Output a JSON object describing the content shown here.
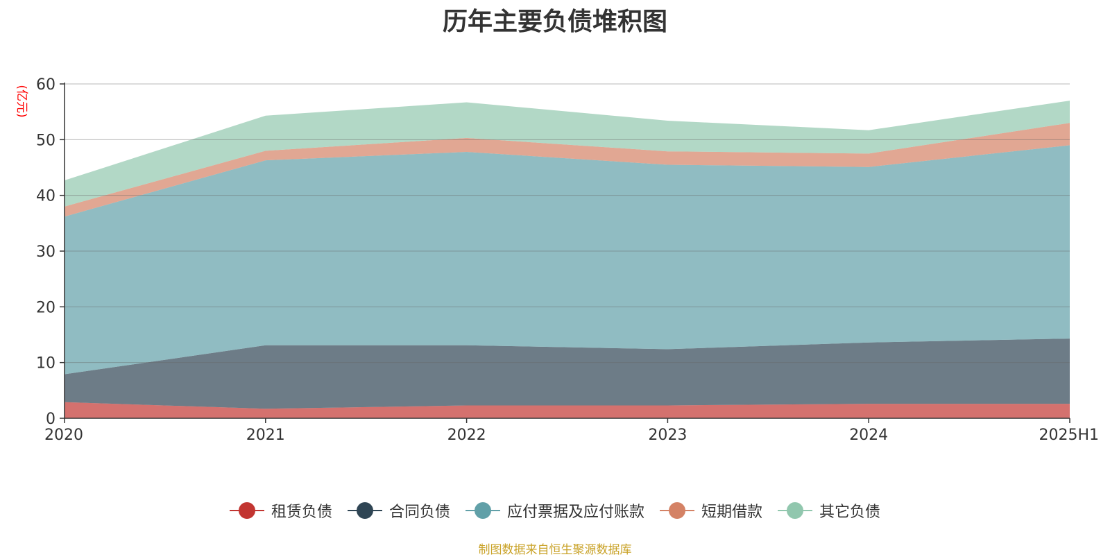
{
  "chart_data": {
    "type": "area",
    "stacked": true,
    "title": "历年主要负债堆积图",
    "ylabel": "(亿元)",
    "xlabel": "",
    "categories": [
      "2020",
      "2021",
      "2022",
      "2023",
      "2024",
      "2025H1"
    ],
    "ylim": [
      0,
      60
    ],
    "yticks": [
      0,
      10,
      20,
      30,
      40,
      50,
      60
    ],
    "grid": true,
    "legend_position": "bottom",
    "series": [
      {
        "name": "租赁负债",
        "color": "#c23531",
        "values": [
          2.9,
          1.7,
          2.3,
          2.3,
          2.6,
          2.6
        ]
      },
      {
        "name": "合同负债",
        "color": "#2f4554",
        "values": [
          5.0,
          11.4,
          10.8,
          10.1,
          11.0,
          11.7
        ]
      },
      {
        "name": "应付票据及应付账款",
        "color": "#61a0a8",
        "values": [
          28.3,
          33.2,
          34.7,
          33.1,
          31.5,
          34.7
        ]
      },
      {
        "name": "短期借款",
        "color": "#d48265",
        "values": [
          1.8,
          1.7,
          2.5,
          2.4,
          2.4,
          4.0
        ]
      },
      {
        "name": "其它负债",
        "color": "#91c7ae",
        "values": [
          4.7,
          6.3,
          6.4,
          5.5,
          4.2,
          4.0
        ]
      }
    ]
  },
  "source_text": "制图数据来自恒生聚源数据库",
  "source_color": "#c9a227"
}
